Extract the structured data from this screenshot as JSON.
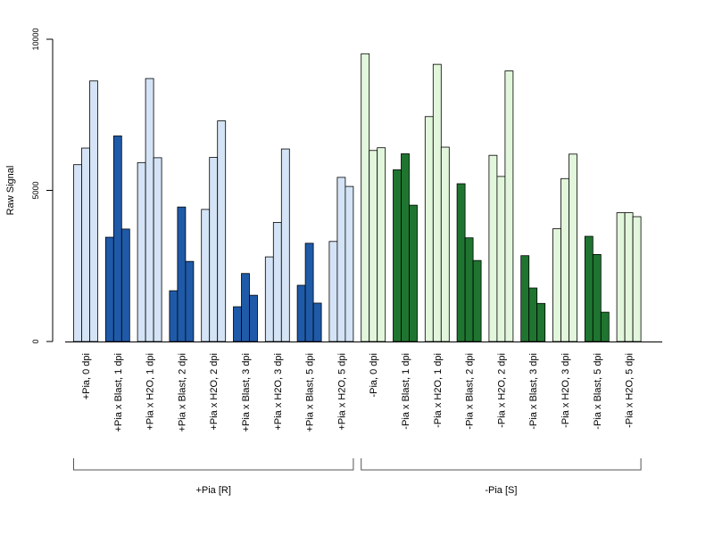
{
  "chart_data": {
    "type": "bar",
    "ylabel": "Raw Signal",
    "ylim": [
      0,
      10000
    ],
    "yticks": [
      "0",
      "5000",
      "10000"
    ],
    "group_size": 3,
    "colors": {
      "pia_plus_light": "#d4e3f5",
      "pia_plus_dark": "#1f5aa8",
      "pia_minus_light": "#e2f6dc",
      "pia_minus_dark": "#1f7530"
    },
    "categories": [
      "+Pia, 0 dpi",
      "+Pia x Blast, 1 dpi",
      "+Pia x H2O, 1 dpi",
      "+Pia x Blast, 2 dpi",
      "+Pia x H2O, 2 dpi",
      "+Pia x Blast, 3 dpi",
      "+Pia x H2O, 3 dpi",
      "+Pia x Blast, 5 dpi",
      "+Pia x H2O, 5 dpi",
      "-Pia, 0 dpi",
      "-Pia x Blast, 1 dpi",
      "-Pia x H2O, 1 dpi",
      "-Pia x Blast, 2 dpi",
      "-Pia x H2O, 2 dpi",
      "-Pia x Blast, 3 dpi",
      "-Pia x H2O, 3 dpi",
      "-Pia x Blast, 5 dpi",
      "-Pia x H2O, 5 dpi"
    ],
    "group_colors": [
      "pia_plus_light",
      "pia_plus_dark",
      "pia_plus_light",
      "pia_plus_dark",
      "pia_plus_light",
      "pia_plus_dark",
      "pia_plus_light",
      "pia_plus_dark",
      "pia_plus_light",
      "pia_minus_light",
      "pia_minus_dark",
      "pia_minus_light",
      "pia_minus_dark",
      "pia_minus_light",
      "pia_minus_dark",
      "pia_minus_light",
      "pia_minus_dark",
      "pia_minus_light"
    ],
    "values": [
      [
        5850,
        6400,
        8620
      ],
      [
        3450,
        6800,
        3720
      ],
      [
        5920,
        8700,
        6080
      ],
      [
        1680,
        4450,
        2650
      ],
      [
        4370,
        6090,
        7300
      ],
      [
        1150,
        2250,
        1530
      ],
      [
        2800,
        3940,
        6370
      ],
      [
        1860,
        3250,
        1270
      ],
      [
        3310,
        5430,
        5130
      ],
      [
        9520,
        6320,
        6410
      ],
      [
        5680,
        6210,
        4510
      ],
      [
        7440,
        9170,
        6430
      ],
      [
        5220,
        3430,
        2680
      ],
      [
        6160,
        5460,
        8950
      ],
      [
        2840,
        1770,
        1260
      ],
      [
        3730,
        5390,
        6200
      ],
      [
        3480,
        2880,
        970
      ],
      [
        4260,
        4260,
        4130
      ]
    ],
    "groups": [
      {
        "label": "+Pia [R]",
        "from": 0,
        "to": 8
      },
      {
        "label": "-Pia [S]",
        "from": 9,
        "to": 17
      }
    ]
  }
}
